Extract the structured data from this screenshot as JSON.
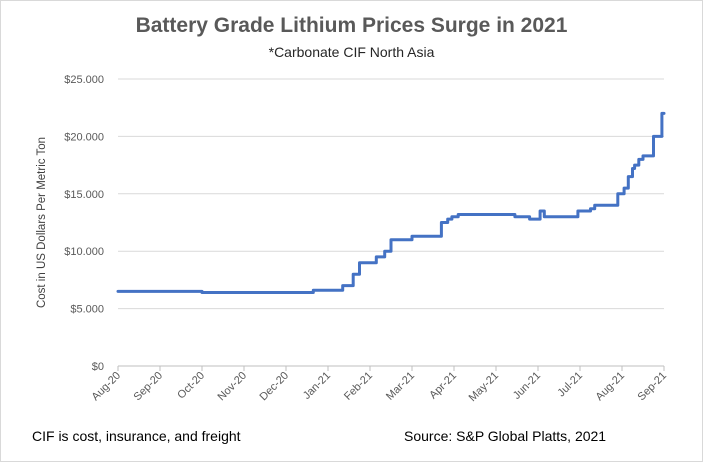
{
  "footnote": "CIF is cost, insurance, and freight",
  "source": "Source: S&P Global Platts, 2021",
  "chart_data": {
    "type": "line",
    "title": "Battery Grade Lithium Prices Surge in 2021",
    "subtitle": "*Carbonate CIF North Asia",
    "xlabel": "",
    "ylabel": "Cost in US Dollars Per Metric Ton",
    "ylim": [
      0,
      25000
    ],
    "y_ticks": [
      0,
      5000,
      10000,
      15000,
      20000,
      25000
    ],
    "y_tick_labels": [
      "$0",
      "$5.000",
      "$10.000",
      "$15.000",
      "$20.000",
      "$25.000"
    ],
    "x_tick_labels": [
      "Aug-20",
      "Sep-20",
      "Oct-20",
      "Nov-20",
      "Dec-20",
      "Jan-21",
      "Feb-21",
      "Mar-21",
      "Apr-21",
      "May-21",
      "Jun-21",
      "Jul-21",
      "Aug-21",
      "Sep-21"
    ],
    "grid": "horizontal",
    "line_color": "#4472c4",
    "series": [
      {
        "name": "Battery Grade Lithium Carbonate CIF North Asia",
        "x": [
          0,
          2,
          2,
          4.65,
          4.65,
          5.35,
          5.35,
          5.6,
          5.6,
          5.75,
          5.75,
          6.15,
          6.15,
          6.35,
          6.35,
          6.5,
          6.5,
          7.0,
          7.0,
          7.7,
          7.7,
          7.85,
          7.85,
          7.95,
          7.95,
          8.1,
          8.1,
          9.45,
          9.45,
          9.8,
          9.8,
          10.05,
          10.05,
          10.15,
          10.15,
          10.95,
          10.95,
          11.25,
          11.25,
          11.35,
          11.35,
          11.9,
          11.9,
          12.05,
          12.05,
          12.15,
          12.15,
          12.25,
          12.25,
          12.3,
          12.3,
          12.4,
          12.4,
          12.5,
          12.5,
          12.75,
          12.75,
          12.95,
          12.95,
          13.0
        ],
        "y": [
          6500,
          6500,
          6400,
          6400,
          6600,
          6600,
          7000,
          7000,
          8000,
          8000,
          9000,
          9000,
          9500,
          9500,
          10000,
          10000,
          11000,
          11000,
          11300,
          11300,
          12500,
          12500,
          12800,
          12800,
          13000,
          13000,
          13200,
          13200,
          13000,
          13000,
          12800,
          12800,
          13500,
          13500,
          13000,
          13000,
          13500,
          13500,
          13700,
          13700,
          14000,
          14000,
          15000,
          15000,
          15500,
          15500,
          16500,
          16500,
          17200,
          17200,
          17500,
          17500,
          18000,
          18000,
          18300,
          18300,
          20000,
          20000,
          22000,
          22000
        ]
      }
    ]
  }
}
